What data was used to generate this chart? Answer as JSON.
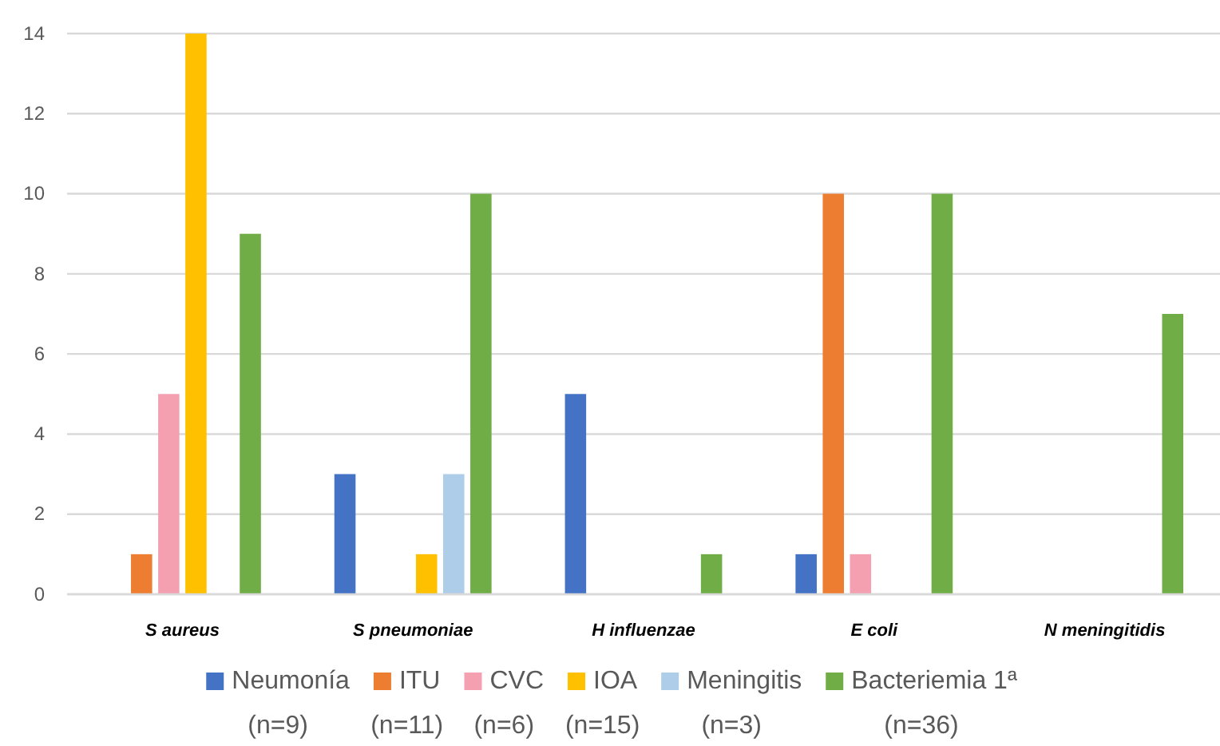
{
  "chart_data": {
    "type": "bar",
    "categories": [
      "S aureus",
      "S pneumoniae",
      "H influenzae",
      "E coli",
      "N meningitidis"
    ],
    "series": [
      {
        "name": "Neumonía (n=9)",
        "color": "#4472c4",
        "values": [
          0,
          3,
          5,
          1,
          0
        ]
      },
      {
        "name": "ITU (n=11)",
        "color": "#ed7d31",
        "values": [
          1,
          0,
          0,
          10,
          0
        ]
      },
      {
        "name": "CVC (n=6)",
        "color": "#f4a0b0",
        "values": [
          5,
          0,
          0,
          1,
          0
        ]
      },
      {
        "name": "IOA (n=15)",
        "color": "#ffc000",
        "values": [
          14,
          1,
          0,
          0,
          0
        ]
      },
      {
        "name": "Meningitis (n=3)",
        "color": "#aecde9",
        "values": [
          0,
          3,
          0,
          0,
          0
        ]
      },
      {
        "name": "Bacteriemia 1ª (n=36)",
        "color": "#70ad47",
        "values": [
          9,
          10,
          1,
          10,
          7
        ]
      }
    ],
    "ylim": [
      0,
      14
    ],
    "yticks": [
      0,
      2,
      4,
      6,
      8,
      10,
      12,
      14
    ],
    "grid": "y",
    "legend": "bottom"
  }
}
